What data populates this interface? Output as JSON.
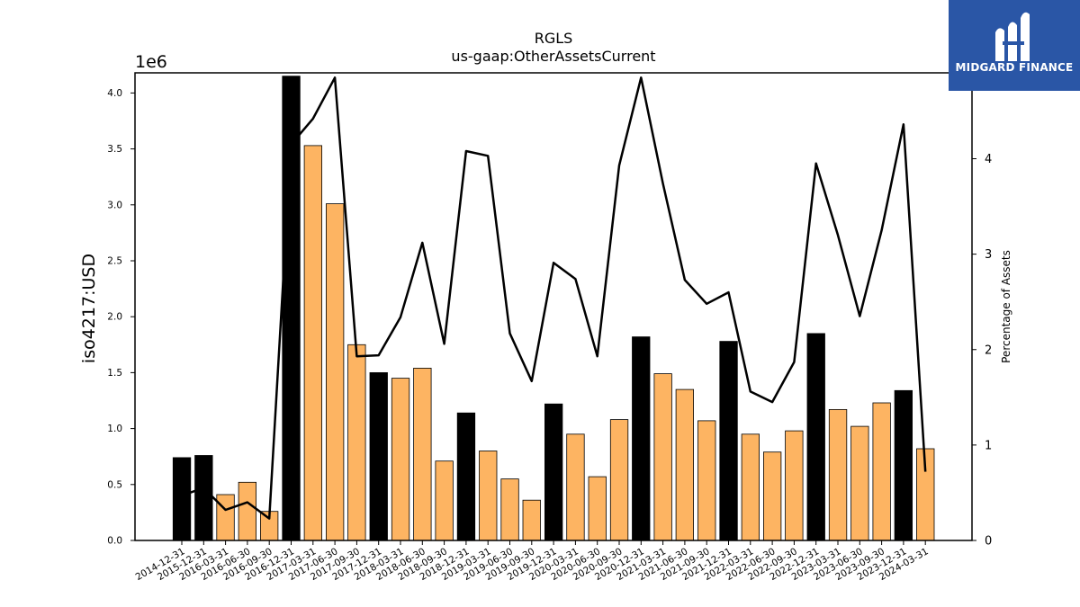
{
  "chart_data": {
    "type": "bar",
    "title": "RGLS",
    "subtitle": "us-gaap:OtherAssetsCurrent",
    "ylabel": "iso4217:USD",
    "y_offset_label": "1e6",
    "y2label": "Percentage of Assets",
    "ylim": [
      0,
      4.18
    ],
    "y_ticks": [
      0.0,
      0.5,
      1.0,
      1.5,
      2.0,
      2.5,
      3.0,
      3.5,
      4.0
    ],
    "y2lim": [
      0,
      4.9
    ],
    "y2_ticks": [
      0,
      1,
      2,
      3,
      4
    ],
    "grid": false,
    "categories": [
      "2014-12-31",
      "2015-12-31",
      "2016-03-31",
      "2016-06-30",
      "2016-09-30",
      "2016-12-31",
      "2017-03-31",
      "2017-06-30",
      "2017-09-30",
      "2017-12-31",
      "2018-03-31",
      "2018-06-30",
      "2018-09-30",
      "2018-12-31",
      "2019-03-31",
      "2019-06-30",
      "2019-09-30",
      "2019-12-31",
      "2020-03-31",
      "2020-06-30",
      "2020-09-30",
      "2020-12-31",
      "2021-03-31",
      "2021-06-30",
      "2021-09-30",
      "2021-12-31",
      "2022-03-31",
      "2022-06-30",
      "2022-09-30",
      "2022-12-31",
      "2023-03-31",
      "2023-06-30",
      "2023-09-30",
      "2023-12-31",
      "2024-03-31"
    ],
    "series": [
      {
        "type": "bar",
        "axis": "left",
        "values": [
          0.74,
          0.76,
          0.41,
          0.52,
          0.26,
          4.15,
          3.53,
          3.01,
          1.75,
          1.5,
          1.45,
          1.54,
          0.71,
          1.14,
          0.8,
          0.55,
          0.36,
          1.22,
          0.95,
          0.57,
          1.08,
          1.82,
          1.49,
          1.35,
          1.07,
          1.78,
          0.95,
          0.79,
          0.98,
          1.85,
          1.17,
          1.02,
          1.23,
          1.34,
          0.82
        ],
        "colors": [
          "#000000",
          "#000000",
          "#fdb462",
          "#fdb462",
          "#fdb462",
          "#000000",
          "#fdb462",
          "#fdb462",
          "#fdb462",
          "#000000",
          "#fdb462",
          "#fdb462",
          "#fdb462",
          "#000000",
          "#fdb462",
          "#fdb462",
          "#fdb462",
          "#000000",
          "#fdb462",
          "#fdb462",
          "#fdb462",
          "#000000",
          "#fdb462",
          "#fdb462",
          "#fdb462",
          "#000000",
          "#fdb462",
          "#fdb462",
          "#fdb462",
          "#000000",
          "#fdb462",
          "#fdb462",
          "#fdb462",
          "#000000",
          "#fdb462"
        ]
      },
      {
        "type": "line",
        "axis": "right",
        "color": "#000000",
        "values": [
          0.47,
          0.55,
          0.32,
          0.4,
          0.23,
          4.15,
          4.42,
          4.85,
          1.93,
          1.94,
          2.34,
          3.12,
          2.06,
          4.08,
          4.03,
          2.17,
          1.67,
          2.91,
          2.74,
          1.93,
          3.93,
          4.85,
          3.74,
          2.73,
          2.48,
          2.6,
          1.56,
          1.45,
          1.87,
          3.95,
          3.2,
          2.35,
          3.25,
          4.36,
          0.72
        ]
      }
    ]
  },
  "logo": {
    "text": "MIDGARD FINANCE"
  }
}
